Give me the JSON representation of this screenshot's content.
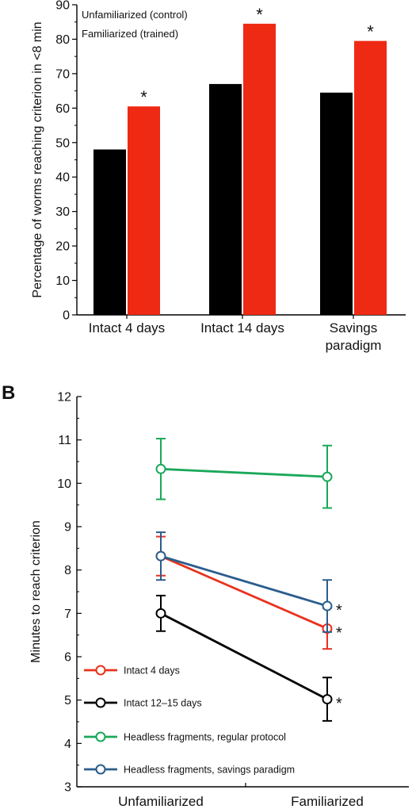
{
  "chart_data": [
    {
      "type": "bar",
      "title": "",
      "ylabel": "Percentage of worms reaching criterion in <8 min",
      "ylim": [
        0,
        90
      ],
      "y_ticks": [
        "0",
        "10",
        "20",
        "30",
        "40",
        "50",
        "60",
        "70",
        "80",
        "90"
      ],
      "categories": [
        "Intact 4 days",
        "Intact 14 days",
        "Savings paradigm"
      ],
      "category_lines": [
        [
          "Intact 4 days"
        ],
        [
          "Intact 14 days"
        ],
        [
          "Savings",
          "paradigm"
        ]
      ],
      "series": [
        {
          "name": "Unfamiliarized (control)",
          "color": "#000000",
          "values": [
            48,
            67,
            64.5
          ]
        },
        {
          "name": "Familiarized (trained)",
          "color": "#ee2a14",
          "values": [
            60.5,
            84.5,
            79.5
          ]
        }
      ],
      "significance_marker": "*",
      "significant": [
        false,
        false,
        false,
        true,
        true,
        true
      ],
      "legend_position": "top-left"
    },
    {
      "type": "line",
      "panel_label": "B",
      "ylabel": "Minutes to reach criterion",
      "ylim": [
        3,
        12
      ],
      "y_ticks": [
        "3",
        "4",
        "5",
        "6",
        "7",
        "8",
        "9",
        "10",
        "11",
        "12"
      ],
      "categories": [
        "Unfamiliarized",
        "Familiarized"
      ],
      "series": [
        {
          "name": "Headless fragments, regular protocol",
          "color": "#1aa85a",
          "values": [
            10.33,
            10.15
          ],
          "error": [
            0.7,
            0.72
          ],
          "significant": [
            false,
            false
          ]
        },
        {
          "name": "Intact 4 days",
          "color": "#e8321e",
          "values": [
            8.32,
            6.65
          ],
          "error": [
            0.45,
            0.47
          ],
          "significant": [
            false,
            true
          ]
        },
        {
          "name": "Headless fragments, savings paradigm",
          "color": "#2a5d8c",
          "values": [
            8.32,
            7.17
          ],
          "error": [
            0.55,
            0.6
          ],
          "significant": [
            false,
            true
          ]
        },
        {
          "name": "Intact 12–15 days",
          "color": "#000000",
          "values": [
            7.0,
            5.02
          ],
          "error": [
            0.41,
            0.5
          ],
          "significant": [
            false,
            true
          ]
        }
      ],
      "legend_order": [
        "Intact 4 days",
        "Intact 12–15 days",
        "Headless fragments, regular protocol",
        "Headless fragments, savings paradigm"
      ],
      "significance_marker": "*",
      "legend_position": "bottom-left"
    }
  ]
}
